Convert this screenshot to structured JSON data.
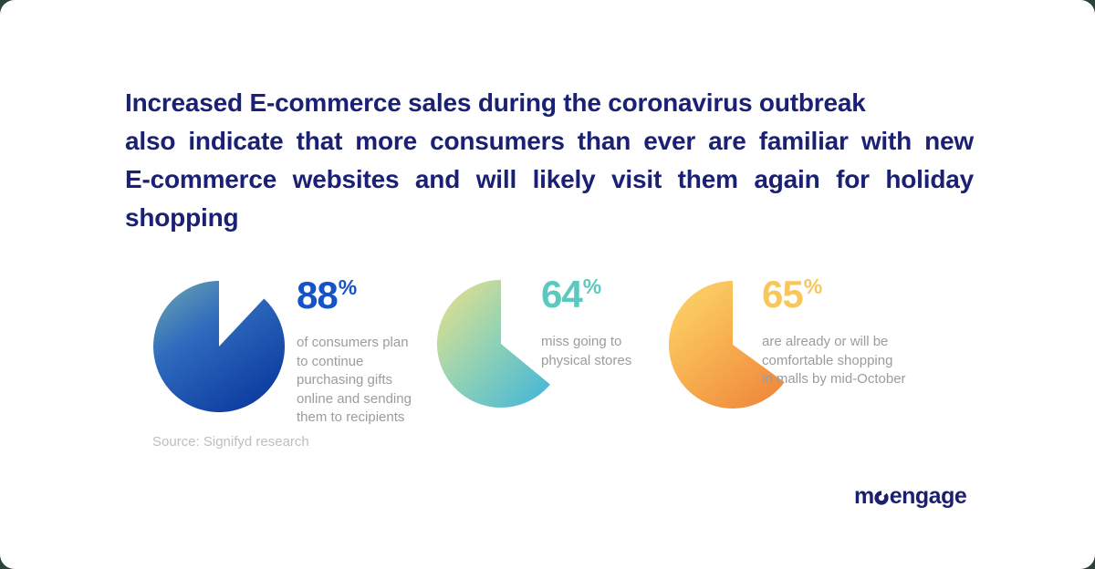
{
  "headline": {
    "color": "#1a2175",
    "lines": [
      "Increased E-commerce sales during the coronavirus outbreak",
      "also indicate that more consumers than ever are familiar with new",
      "E-commerce websites and will likely visit them again for holiday",
      "shopping"
    ]
  },
  "chart_data": [
    {
      "type": "pie",
      "percent": "88",
      "percent_sign": "%",
      "percent_color": "#1553c8",
      "slices": [
        88,
        12
      ],
      "label": "of consumers plan to continue purchasing gifts online and sending them to recipients",
      "desc_lines": [
        "of consumers plan",
        "to continue",
        "purchasing gifts",
        "online and sending",
        "them to recipients"
      ],
      "gradient": [
        "#6FA9AF",
        "#2F6BBE",
        "#0D3CA0"
      ]
    },
    {
      "type": "pie",
      "percent": "64",
      "percent_sign": "%",
      "percent_color": "#5bc9be",
      "slices": [
        64,
        36
      ],
      "label": "miss going to physical stores",
      "desc_lines": [
        "miss going to",
        "physical stores"
      ],
      "gradient": [
        "#EDE189",
        "#93D2B4",
        "#3FB4DB"
      ]
    },
    {
      "type": "pie",
      "percent": "65",
      "percent_sign": "%",
      "percent_color": "#f8c75b",
      "slices": [
        65,
        35
      ],
      "label": "are already or will be comfortable shopping in malls by mid-October",
      "desc_lines": [
        "are already or will be",
        "comfortable shopping",
        "in malls by mid-October"
      ],
      "gradient": [
        "#FCD96C",
        "#F7AE4F",
        "#EF8A3D"
      ]
    }
  ],
  "source": {
    "label": "Source: Signifyd research"
  },
  "logo": {
    "part1": "m",
    "part2": "engage",
    "color": "#1b1f70"
  }
}
